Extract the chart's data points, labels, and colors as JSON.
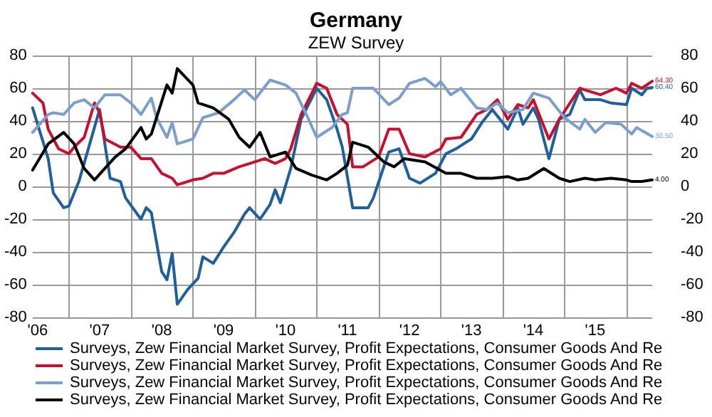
{
  "chart_data": {
    "type": "line",
    "title": "Germany",
    "subtitle": "ZEW Survey",
    "xlim": [
      "2006-06",
      "2016-06"
    ],
    "xticks": [
      {
        "value": "2006-07",
        "label": "'06"
      },
      {
        "value": "2007-07",
        "label": "'07"
      },
      {
        "value": "2008-07",
        "label": "'08"
      },
      {
        "value": "2009-07",
        "label": "'09"
      },
      {
        "value": "2010-07",
        "label": "'10"
      },
      {
        "value": "2011-07",
        "label": "'11"
      },
      {
        "value": "2012-07",
        "label": "'12"
      },
      {
        "value": "2013-07",
        "label": "'13"
      },
      {
        "value": "2014-07",
        "label": "'14"
      },
      {
        "value": "2015-07",
        "label": "'15"
      },
      {
        "value": "2007-01",
        "label": null
      },
      {
        "value": "2008-01",
        "label": null
      },
      {
        "value": "2009-01",
        "label": null
      },
      {
        "value": "2010-01",
        "label": null
      },
      {
        "value": "2011-01",
        "label": null
      },
      {
        "value": "2012-01",
        "label": null
      },
      {
        "value": "2013-01",
        "label": null
      },
      {
        "value": "2014-01",
        "label": null
      },
      {
        "value": "2015-01",
        "label": null
      },
      {
        "value": "2016-01",
        "label": null
      }
    ],
    "ylim": [
      -80,
      80
    ],
    "yticks": [
      -80,
      -60,
      -40,
      -20,
      0,
      20,
      40,
      60,
      80
    ],
    "y2lim": [
      -80,
      80
    ],
    "y2ticks": [
      -80,
      -60,
      -40,
      -20,
      0,
      20,
      40,
      60,
      80
    ],
    "grid": true,
    "legend": "bottom",
    "marker": "none",
    "line_style": "solid",
    "series": [
      {
        "name": "Surveys, Zew Financial Market Survey, Profit Expectations, Consumer Goods And Re",
        "color": "#1f5f9a",
        "x": [
          "2006-06",
          "2006-09",
          "2006-10",
          "2006-12",
          "2007-01",
          "2007-02",
          "2007-03",
          "2007-07",
          "2007-08",
          "2007-09",
          "2007-11",
          "2007-12",
          "2008-03",
          "2008-04",
          "2008-05",
          "2008-07",
          "2008-08",
          "2008-09",
          "2008-10",
          "2008-12",
          "2009-02",
          "2009-03",
          "2009-05",
          "2009-07",
          "2009-09",
          "2009-11",
          "2009-12",
          "2010-02",
          "2010-04",
          "2010-05",
          "2010-06",
          "2010-08",
          "2010-10",
          "2011-01",
          "2011-03",
          "2011-05",
          "2011-06",
          "2011-08",
          "2011-11",
          "2011-12",
          "2012-03",
          "2012-05",
          "2012-07",
          "2012-09",
          "2012-12",
          "2013-02",
          "2013-04",
          "2013-07",
          "2013-09",
          "2013-11",
          "2014-02",
          "2014-04",
          "2014-05",
          "2014-07",
          "2014-08",
          "2014-10",
          "2014-12",
          "2015-02",
          "2015-04",
          "2015-05",
          "2015-08",
          "2015-10",
          "2016-01",
          "2016-02",
          "2016-04",
          "2016-05",
          "2016-06"
        ],
        "values": [
          48,
          17,
          -4,
          -13,
          -12,
          -4,
          3,
          47,
          26,
          5,
          3,
          -7,
          -20,
          -13,
          -16,
          -52,
          -57,
          -41,
          -72,
          -63,
          -56,
          -43,
          -47,
          -37,
          -28,
          -17,
          -13,
          -20,
          -11,
          -2,
          -10,
          11,
          41,
          60,
          53,
          35,
          24,
          -13,
          -13,
          -7,
          21,
          23,
          5,
          2,
          8,
          20,
          23,
          29,
          39,
          47,
          35,
          48,
          38,
          48,
          41,
          17,
          41,
          44,
          59,
          53,
          53,
          51,
          50,
          60,
          56,
          60,
          60.4
        ],
        "value_labels": [
          null,
          null,
          null,
          null,
          null,
          null,
          null,
          null,
          null,
          null,
          null,
          null,
          null,
          null,
          null,
          null,
          null,
          null,
          null,
          null,
          null,
          null,
          null,
          null,
          null,
          null,
          null,
          null,
          null,
          null,
          null,
          null,
          null,
          null,
          null,
          null,
          null,
          null,
          null,
          null,
          null,
          null,
          null,
          null,
          null,
          null,
          null,
          null,
          null,
          null,
          null,
          null,
          null,
          null,
          null,
          null,
          null,
          null,
          null,
          null,
          null,
          null,
          null,
          null,
          null,
          null,
          "60.40"
        ]
      },
      {
        "name": "Surveys, Zew Financial Market Survey, Profit Expectations, Consumer Goods And Re",
        "color": "#c8102e",
        "x": [
          "2006-06",
          "2006-08",
          "2006-09",
          "2006-11",
          "2007-01",
          "2007-02",
          "2007-04",
          "2007-06",
          "2007-07",
          "2007-08",
          "2007-11",
          "2008-01",
          "2008-03",
          "2008-05",
          "2008-07",
          "2008-09",
          "2008-10",
          "2009-01",
          "2009-03",
          "2009-05",
          "2009-07",
          "2009-10",
          "2009-12",
          "2010-03",
          "2010-05",
          "2010-07",
          "2010-08",
          "2010-10",
          "2011-01",
          "2011-03",
          "2011-05",
          "2011-07",
          "2011-08",
          "2011-10",
          "2012-01",
          "2012-03",
          "2012-05",
          "2012-07",
          "2012-10",
          "2013-01",
          "2013-02",
          "2013-05",
          "2013-08",
          "2013-10",
          "2013-12",
          "2014-02",
          "2014-04",
          "2014-06",
          "2014-07",
          "2014-10",
          "2014-12",
          "2015-04",
          "2015-05",
          "2015-08",
          "2015-11",
          "2016-01",
          "2016-02",
          "2016-04",
          "2016-06"
        ],
        "values": [
          57,
          51,
          35,
          23,
          20,
          24,
          30,
          51,
          45,
          29,
          24,
          24,
          17,
          17,
          8,
          5,
          1,
          4,
          5,
          8,
          8,
          12,
          14,
          17,
          14,
          17,
          23,
          44,
          63,
          60,
          44,
          38,
          12,
          12,
          18,
          35,
          35,
          20,
          18,
          23,
          29,
          30,
          44,
          47,
          53,
          41,
          50,
          48,
          53,
          29,
          41,
          60,
          59,
          56,
          60,
          57,
          63,
          60,
          64.3
        ],
        "value_labels": [
          null,
          null,
          null,
          null,
          null,
          null,
          null,
          null,
          null,
          null,
          null,
          null,
          null,
          null,
          null,
          null,
          null,
          null,
          null,
          null,
          null,
          null,
          null,
          null,
          null,
          null,
          null,
          null,
          null,
          null,
          null,
          null,
          null,
          null,
          null,
          null,
          null,
          null,
          null,
          null,
          null,
          null,
          null,
          null,
          null,
          null,
          null,
          null,
          null,
          null,
          null,
          null,
          null,
          null,
          null,
          null,
          null,
          null,
          "64.30"
        ]
      },
      {
        "name": "Surveys, Zew Financial Market Survey, Profit Expectations, Consumer Goods And Re",
        "color": "#7b9fcc",
        "x": [
          "2006-06",
          "2006-09",
          "2006-10",
          "2006-12",
          "2007-02",
          "2007-04",
          "2007-06",
          "2007-08",
          "2007-11",
          "2008-01",
          "2008-03",
          "2008-05",
          "2008-06",
          "2008-08",
          "2008-09",
          "2008-10",
          "2009-01",
          "2009-03",
          "2009-06",
          "2009-09",
          "2009-11",
          "2010-01",
          "2010-04",
          "2010-07",
          "2010-09",
          "2010-11",
          "2011-01",
          "2011-04",
          "2011-06",
          "2011-07",
          "2011-08",
          "2011-12",
          "2012-03",
          "2012-05",
          "2012-07",
          "2012-10",
          "2012-12",
          "2013-01",
          "2013-03",
          "2013-05",
          "2013-08",
          "2013-10",
          "2013-12",
          "2014-02",
          "2014-05",
          "2014-07",
          "2014-10",
          "2015-01",
          "2015-04",
          "2015-05",
          "2015-07",
          "2015-09",
          "2015-12",
          "2016-02",
          "2016-03",
          "2016-06"
        ],
        "values": [
          33,
          44,
          45,
          44,
          51,
          53,
          48,
          56,
          56,
          51,
          44,
          54,
          42,
          30,
          39,
          26,
          29,
          42,
          45,
          53,
          59,
          53,
          65,
          62,
          57,
          44,
          30,
          36,
          44,
          45,
          60,
          60,
          50,
          54,
          63,
          66,
          61,
          64,
          56,
          60,
          48,
          47,
          51,
          45,
          47,
          57,
          54,
          42,
          35,
          41,
          33,
          39,
          38,
          32,
          36,
          30.5
        ],
        "value_labels": [
          null,
          null,
          null,
          null,
          null,
          null,
          null,
          null,
          null,
          null,
          null,
          null,
          null,
          null,
          null,
          null,
          null,
          null,
          null,
          null,
          null,
          null,
          null,
          null,
          null,
          null,
          null,
          null,
          null,
          null,
          null,
          null,
          null,
          null,
          null,
          null,
          null,
          null,
          null,
          null,
          null,
          null,
          null,
          null,
          null,
          null,
          null,
          null,
          null,
          null,
          null,
          null,
          null,
          null,
          null,
          "30.50"
        ]
      },
      {
        "name": "Surveys, Zew Financial Market Survey, Profit Expectations, Consumer Goods And Re",
        "color": "#000000",
        "x": [
          "2006-06",
          "2006-09",
          "2006-12",
          "2007-02",
          "2007-04",
          "2007-06",
          "2007-08",
          "2007-10",
          "2007-12",
          "2008-03",
          "2008-04",
          "2008-05",
          "2008-08",
          "2008-09",
          "2008-10",
          "2009-01",
          "2009-02",
          "2009-05",
          "2009-08",
          "2009-10",
          "2009-12",
          "2010-02",
          "2010-04",
          "2010-07",
          "2010-09",
          "2010-12",
          "2011-03",
          "2011-05",
          "2011-07",
          "2011-08",
          "2011-11",
          "2012-02",
          "2012-04",
          "2012-06",
          "2012-10",
          "2013-02",
          "2013-05",
          "2013-08",
          "2013-11",
          "2014-02",
          "2014-04",
          "2014-06",
          "2014-09",
          "2014-12",
          "2015-02",
          "2015-05",
          "2015-07",
          "2015-10",
          "2016-01",
          "2016-02",
          "2016-04",
          "2016-06"
        ],
        "values": [
          10,
          26,
          33,
          26,
          11,
          4,
          11,
          18,
          23,
          36,
          29,
          32,
          62,
          57,
          72,
          62,
          51,
          48,
          41,
          30,
          24,
          33,
          18,
          21,
          11,
          7,
          4,
          8,
          13,
          27,
          24,
          15,
          12,
          17,
          15,
          8,
          8,
          5,
          5,
          6,
          4,
          5,
          11,
          5,
          3,
          5,
          4,
          5,
          4,
          3,
          3,
          4
        ],
        "value_labels": [
          null,
          null,
          null,
          null,
          null,
          null,
          null,
          null,
          null,
          null,
          null,
          null,
          null,
          null,
          null,
          null,
          null,
          null,
          null,
          null,
          null,
          null,
          null,
          null,
          null,
          null,
          null,
          null,
          null,
          null,
          null,
          null,
          null,
          null,
          null,
          null,
          null,
          null,
          null,
          null,
          null,
          null,
          null,
          null,
          null,
          null,
          null,
          null,
          null,
          null,
          null,
          "4.00"
        ]
      }
    ]
  }
}
